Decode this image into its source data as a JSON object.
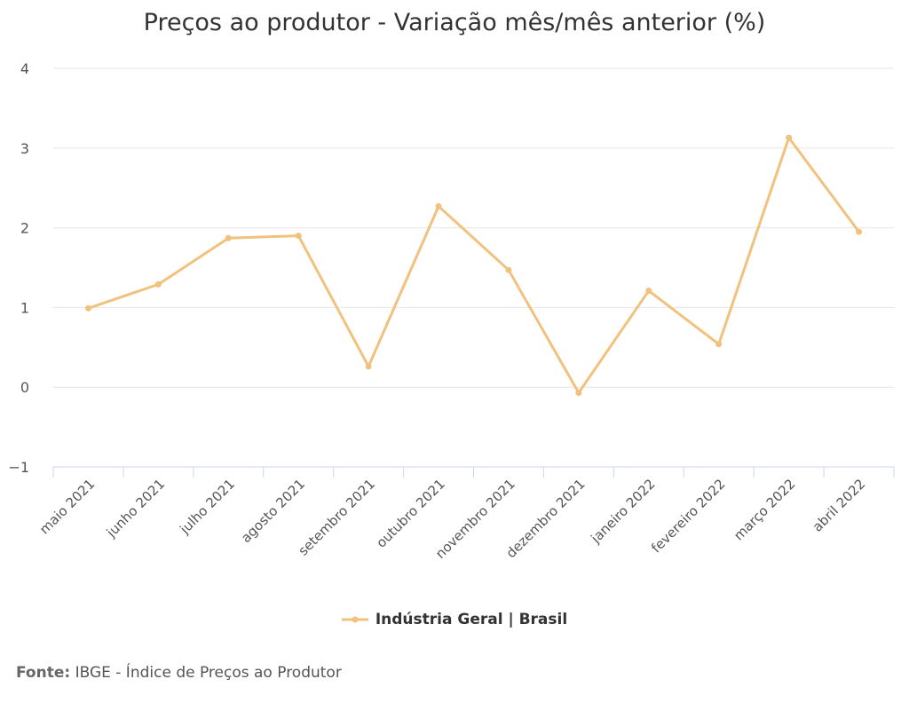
{
  "chart_data": {
    "type": "line",
    "title": "Preços ao produtor - Variação mês/mês anterior (%)",
    "categories": [
      "maio 2021",
      "junho 2021",
      "julho 2021",
      "agosto 2021",
      "setembro 2021",
      "outubro 2021",
      "novembro 2021",
      "dezembro 2021",
      "janeiro 2022",
      "fevereiro 2022",
      "março 2022",
      "abril 2022"
    ],
    "series": [
      {
        "name": "Indústria Geral | Brasil",
        "values": [
          0.99,
          1.29,
          1.87,
          1.9,
          0.26,
          2.27,
          1.47,
          -0.07,
          1.21,
          0.54,
          3.13,
          1.95
        ]
      }
    ],
    "ylim": [
      -1,
      4
    ],
    "yticks": [
      4,
      3,
      2,
      1,
      0,
      -1
    ],
    "grid": true,
    "legend_position": "bottom",
    "color": "#f1c27d"
  },
  "source": {
    "label": "Fonte:",
    "text": "IBGE - Índice de Preços ao Produtor"
  }
}
